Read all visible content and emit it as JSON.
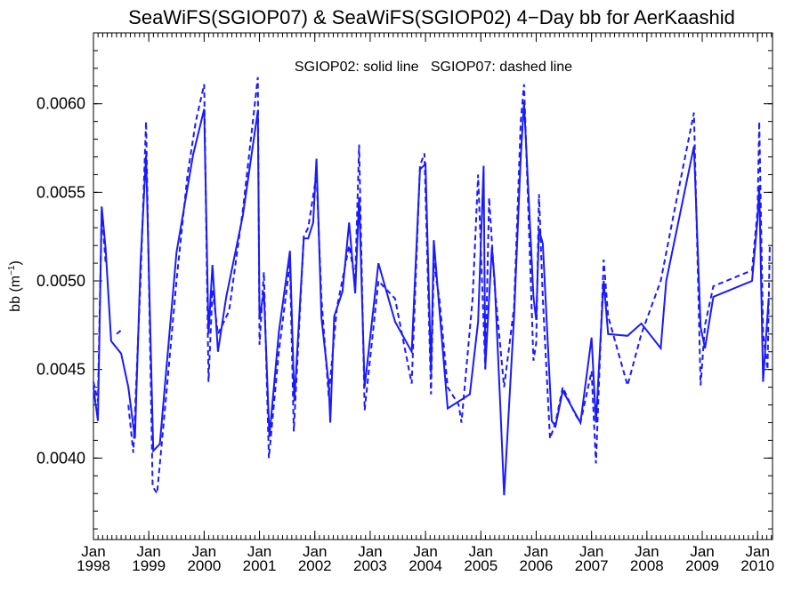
{
  "chart_data": {
    "type": "line",
    "title": "SeaWiFS(SGIOP07) & SeaWiFS(SGIOP02) 4−Day bb for AerKaashid",
    "annotation": "SGIOP02: solid line   SGIOP07: dashed line",
    "ylabel_main": "bb (m",
    "ylabel_sup": "−1",
    "ylabel_close": ")",
    "xlabel": "",
    "xlim": [
      1998.0,
      2010.27
    ],
    "ylim": [
      0.00354,
      0.0064
    ],
    "x_ticks": [
      {
        "value": 1998,
        "month": "Jan",
        "year": "1998"
      },
      {
        "value": 1999,
        "month": "Jan",
        "year": "1999"
      },
      {
        "value": 2000,
        "month": "Jan",
        "year": "2000"
      },
      {
        "value": 2001,
        "month": "Jan",
        "year": "2001"
      },
      {
        "value": 2002,
        "month": "Jan",
        "year": "2002"
      },
      {
        "value": 2003,
        "month": "Jan",
        "year": "2003"
      },
      {
        "value": 2004,
        "month": "Jan",
        "year": "2004"
      },
      {
        "value": 2005,
        "month": "Jan",
        "year": "2005"
      },
      {
        "value": 2006,
        "month": "Jan",
        "year": "2006"
      },
      {
        "value": 2007,
        "month": "Jan",
        "year": "2007"
      },
      {
        "value": 2008,
        "month": "Jan",
        "year": "2008"
      },
      {
        "value": 2009,
        "month": "Jan",
        "year": "2009"
      },
      {
        "value": 2010,
        "month": "Jan",
        "year": "2010"
      }
    ],
    "y_ticks": [
      {
        "value": 0.004,
        "label": "0.0040"
      },
      {
        "value": 0.0045,
        "label": "0.0045"
      },
      {
        "value": 0.005,
        "label": "0.0050"
      },
      {
        "value": 0.0055,
        "label": "0.0055"
      },
      {
        "value": 0.006,
        "label": "0.0060"
      }
    ],
    "line_color": "#1a1aff",
    "series": [
      {
        "style": "solid",
        "segments": [
          [
            [
              1998.0,
              0.0044
            ],
            [
              1998.08,
              0.00421
            ],
            [
              1998.15,
              0.00542
            ],
            [
              1998.22,
              0.00518
            ],
            [
              1998.32,
              0.00466
            ],
            [
              1998.5,
              0.00459
            ],
            [
              1998.63,
              0.0044
            ],
            [
              1998.75,
              0.00411
            ],
            [
              1998.85,
              0.0051
            ],
            [
              1998.95,
              0.00571
            ],
            [
              1999.08,
              0.00404
            ],
            [
              1999.2,
              0.00408
            ],
            [
              1999.5,
              0.00516
            ],
            [
              1999.8,
              0.00571
            ],
            [
              2000.0,
              0.00597
            ],
            [
              2000.08,
              0.0047
            ],
            [
              2000.15,
              0.00509
            ],
            [
              2000.25,
              0.0046
            ],
            [
              2000.4,
              0.00491
            ],
            [
              2000.7,
              0.00537
            ],
            [
              2000.97,
              0.00596
            ],
            [
              2001.0,
              0.00479
            ],
            [
              2001.08,
              0.00494
            ],
            [
              2001.18,
              0.00412
            ],
            [
              2001.35,
              0.00471
            ],
            [
              2001.55,
              0.00517
            ],
            [
              2001.63,
              0.00432
            ],
            [
              2001.8,
              0.00524
            ],
            [
              2001.88,
              0.00524
            ],
            [
              2001.97,
              0.00533
            ],
            [
              2002.03,
              0.00569
            ],
            [
              2002.12,
              0.00479
            ],
            [
              2002.25,
              0.00442
            ],
            [
              2002.28,
              0.0042
            ],
            [
              2002.35,
              0.0048
            ],
            [
              2002.5,
              0.00494
            ],
            [
              2002.62,
              0.00533
            ],
            [
              2002.73,
              0.00493
            ],
            [
              2002.8,
              0.00547
            ],
            [
              2002.9,
              0.0044
            ],
            [
              2003.15,
              0.0051
            ],
            [
              2003.45,
              0.00477
            ],
            [
              2003.75,
              0.0046
            ],
            [
              2003.9,
              0.00563
            ],
            [
              2004.0,
              0.00566
            ],
            [
              2004.1,
              0.00448
            ],
            [
              2004.15,
              0.00523
            ],
            [
              2004.25,
              0.00484
            ],
            [
              2004.4,
              0.00428
            ],
            [
              2004.8,
              0.00436
            ],
            [
              2004.95,
              0.00477
            ],
            [
              2005.05,
              0.00565
            ],
            [
              2005.08,
              0.00451
            ],
            [
              2005.2,
              0.00519
            ],
            [
              2005.25,
              0.005
            ],
            [
              2005.35,
              0.0043
            ],
            [
              2005.42,
              0.00379
            ],
            [
              2005.6,
              0.0048
            ],
            [
              2005.72,
              0.0057
            ],
            [
              2005.78,
              0.00601
            ],
            [
              2005.95,
              0.00491
            ],
            [
              2006.0,
              0.00478
            ],
            [
              2006.05,
              0.00529
            ],
            [
              2006.12,
              0.00521
            ],
            [
              2006.28,
              0.00421
            ],
            [
              2006.35,
              0.00418
            ],
            [
              2006.48,
              0.00438
            ],
            [
              2006.8,
              0.0042
            ],
            [
              2007.0,
              0.00468
            ],
            [
              2007.08,
              0.0042
            ],
            [
              2007.22,
              0.005
            ],
            [
              2007.3,
              0.0047
            ],
            [
              2007.65,
              0.00469
            ],
            [
              2007.9,
              0.00476
            ],
            [
              2008.25,
              0.00462
            ],
            [
              2008.35,
              0.005
            ],
            [
              2008.85,
              0.00576
            ],
            [
              2008.97,
              0.00474
            ],
            [
              2009.05,
              0.00462
            ],
            [
              2009.2,
              0.00491
            ],
            [
              2009.9,
              0.005
            ],
            [
              2010.0,
              0.00535
            ],
            [
              2010.03,
              0.00554
            ],
            [
              2010.1,
              0.00443
            ],
            [
              2010.2,
              0.0049
            ]
          ]
        ]
      },
      {
        "style": "dashed",
        "segments": [
          [
            [
              1998.0,
              0.00443
            ],
            [
              1998.08,
              0.00432
            ],
            [
              1998.15,
              0.0054
            ],
            [
              1998.22,
              0.0051
            ]
          ],
          [
            [
              1998.42,
              0.0047
            ],
            [
              1998.53,
              0.00473
            ]
          ],
          [
            [
              1998.63,
              0.0043
            ],
            [
              1998.72,
              0.00403
            ],
            [
              1998.85,
              0.005
            ],
            [
              1998.95,
              0.0059
            ],
            [
              1999.07,
              0.00384
            ],
            [
              1999.15,
              0.0038
            ],
            [
              1999.3,
              0.0043
            ],
            [
              1999.5,
              0.005
            ],
            [
              1999.7,
              0.0056
            ],
            [
              1999.85,
              0.0059
            ],
            [
              2000.0,
              0.00611
            ],
            [
              2000.08,
              0.00443
            ],
            [
              2000.15,
              0.00495
            ],
            [
              2000.25,
              0.0047
            ],
            [
              2000.45,
              0.00483
            ],
            [
              2000.7,
              0.0054
            ],
            [
              2000.97,
              0.00615
            ],
            [
              2001.0,
              0.00464
            ],
            [
              2001.08,
              0.00505
            ],
            [
              2001.17,
              0.004
            ],
            [
              2001.35,
              0.0046
            ],
            [
              2001.55,
              0.0051
            ],
            [
              2001.62,
              0.00415
            ],
            [
              2001.8,
              0.00525
            ],
            [
              2001.88,
              0.0053
            ],
            [
              2002.03,
              0.0056
            ],
            [
              2002.12,
              0.0049
            ],
            [
              2002.25,
              0.00435
            ],
            [
              2002.4,
              0.00485
            ],
            [
              2002.62,
              0.0052
            ],
            [
              2002.73,
              0.005
            ],
            [
              2002.8,
              0.00577
            ],
            [
              2002.9,
              0.00427
            ],
            [
              2003.15,
              0.005
            ],
            [
              2003.45,
              0.0049
            ],
            [
              2003.75,
              0.00442
            ],
            [
              2003.9,
              0.00565
            ],
            [
              2003.98,
              0.00572
            ],
            [
              2004.1,
              0.00436
            ],
            [
              2004.15,
              0.0051
            ],
            [
              2004.25,
              0.0049
            ],
            [
              2004.4,
              0.0044
            ],
            [
              2004.6,
              0.0043
            ],
            [
              2004.65,
              0.0042
            ],
            [
              2004.85,
              0.0049
            ],
            [
              2004.95,
              0.0056
            ],
            [
              2005.08,
              0.0045
            ],
            [
              2005.15,
              0.00547
            ],
            [
              2005.25,
              0.00497
            ],
            [
              2005.42,
              0.0044
            ],
            [
              2005.6,
              0.00485
            ],
            [
              2005.72,
              0.0059
            ],
            [
              2005.78,
              0.00611
            ],
            [
              2005.95,
              0.00455
            ],
            [
              2006.0,
              0.00465
            ],
            [
              2006.05,
              0.00549
            ],
            [
              2006.12,
              0.0049
            ],
            [
              2006.25,
              0.00411
            ],
            [
              2006.35,
              0.0042
            ],
            [
              2006.48,
              0.0044
            ],
            [
              2006.7,
              0.00425
            ],
            [
              2006.8,
              0.0042
            ],
            [
              2007.0,
              0.00449
            ],
            [
              2007.08,
              0.00397
            ],
            [
              2007.22,
              0.00512
            ],
            [
              2007.3,
              0.0048
            ],
            [
              2007.65,
              0.00441
            ],
            [
              2007.9,
              0.0047
            ],
            [
              2008.25,
              0.005
            ],
            [
              2008.5,
              0.0054
            ],
            [
              2008.85,
              0.00595
            ],
            [
              2008.97,
              0.00441
            ],
            [
              2009.05,
              0.00475
            ],
            [
              2009.2,
              0.00497
            ],
            [
              2009.9,
              0.00506
            ],
            [
              2010.0,
              0.0054
            ],
            [
              2010.03,
              0.0059
            ],
            [
              2010.1,
              0.0047
            ],
            [
              2010.18,
              0.0045
            ],
            [
              2010.22,
              0.0052
            ]
          ]
        ]
      }
    ]
  }
}
